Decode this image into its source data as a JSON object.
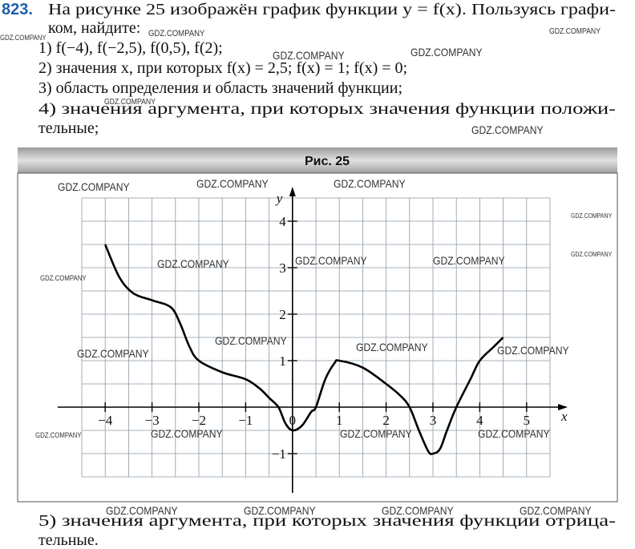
{
  "problem": {
    "number": "823.",
    "lines": [
      "На рисунке 25 изображён график функции y = f(x). Пользуясь графи-",
      "ком, найдите:",
      "1) f(−4), f(−2,5), f(0,5), f(2);",
      "2) значения x, при которых f(x) = 2,5; f(x) = 1; f(x) = 0;",
      "3) область определения и область значений функции;",
      "4) значения аргумента, при которых значения функции положи-",
      "тельные;"
    ],
    "after": [
      "5) значения аргумента, при которых значения функции отрица-",
      "тельные."
    ]
  },
  "chart_data": {
    "type": "line",
    "title": "Рис. 25",
    "x_label": "x",
    "y_label": "y",
    "origin_label": "0",
    "x": [
      -4,
      -3.7,
      -3.4,
      -3,
      -2.6,
      -2.4,
      -2.2,
      -2,
      -1.5,
      -1,
      -0.7,
      -0.5,
      -0.3,
      -0.15,
      0,
      0.2,
      0.4,
      0.5,
      0.7,
      0.9,
      1,
      1.5,
      2,
      2.3,
      2.5,
      2.7,
      2.9,
      3,
      3.15,
      3.3,
      3.5,
      3.8,
      4,
      4.3,
      4.5
    ],
    "values": [
      3.5,
      2.8,
      2.45,
      2.3,
      2.15,
      1.8,
      1.3,
      1,
      0.75,
      0.6,
      0.4,
      0.2,
      0,
      -0.35,
      -0.5,
      -0.4,
      -0.1,
      0,
      0.6,
      0.95,
      1,
      0.85,
      0.5,
      0.25,
      0,
      -0.5,
      -0.95,
      -1,
      -0.9,
      -0.5,
      0,
      0.6,
      1,
      1.3,
      1.5
    ],
    "color": "#000000",
    "xlim": [
      -4.5,
      5.5
    ],
    "ylim": [
      -1.5,
      4.5
    ],
    "xticks": [
      {
        "value": -4,
        "label": "−4"
      },
      {
        "value": -3,
        "label": "−3"
      },
      {
        "value": -2,
        "label": "−2"
      },
      {
        "value": -1,
        "label": "−1"
      },
      1,
      2,
      3,
      4,
      5
    ],
    "yticks": [
      {
        "value": -1,
        "label": "−1"
      },
      1,
      2,
      3,
      4
    ],
    "grid_step": 0.5,
    "grid": true
  },
  "watermarks": [
    "GDZ.COMPANY",
    "GDZ.COMPANY",
    "GDZ.COMPANY",
    "GDZ.COMPANY",
    "GDZ.COMPANY",
    "GDZ.COMPANY",
    "GDZ.COMPANY",
    "GDZ.COMPANY",
    "GDZ.COMPANY",
    "GDZ.COMPANY",
    "GDZ.COMPANY",
    "GDZ.COMPANY",
    "GDZ.COMPANY",
    "GDZ.COMPANY",
    "GDZ.COMPANY",
    "GDZ.COMPANY",
    "GDZ.COMPANY",
    "GDZ.COMPANY",
    "GDZ.COMPANY",
    "GDZ.COMPANY",
    "GDZ.COMPANY",
    "GDZ.COMPANY",
    "GDZ.COMPANY",
    "GDZ.COMPANY",
    "GDZ.COMPANY",
    "GDZ.COMPANY",
    "GDZ.COMPANY",
    "GDZ.COMPANY"
  ]
}
